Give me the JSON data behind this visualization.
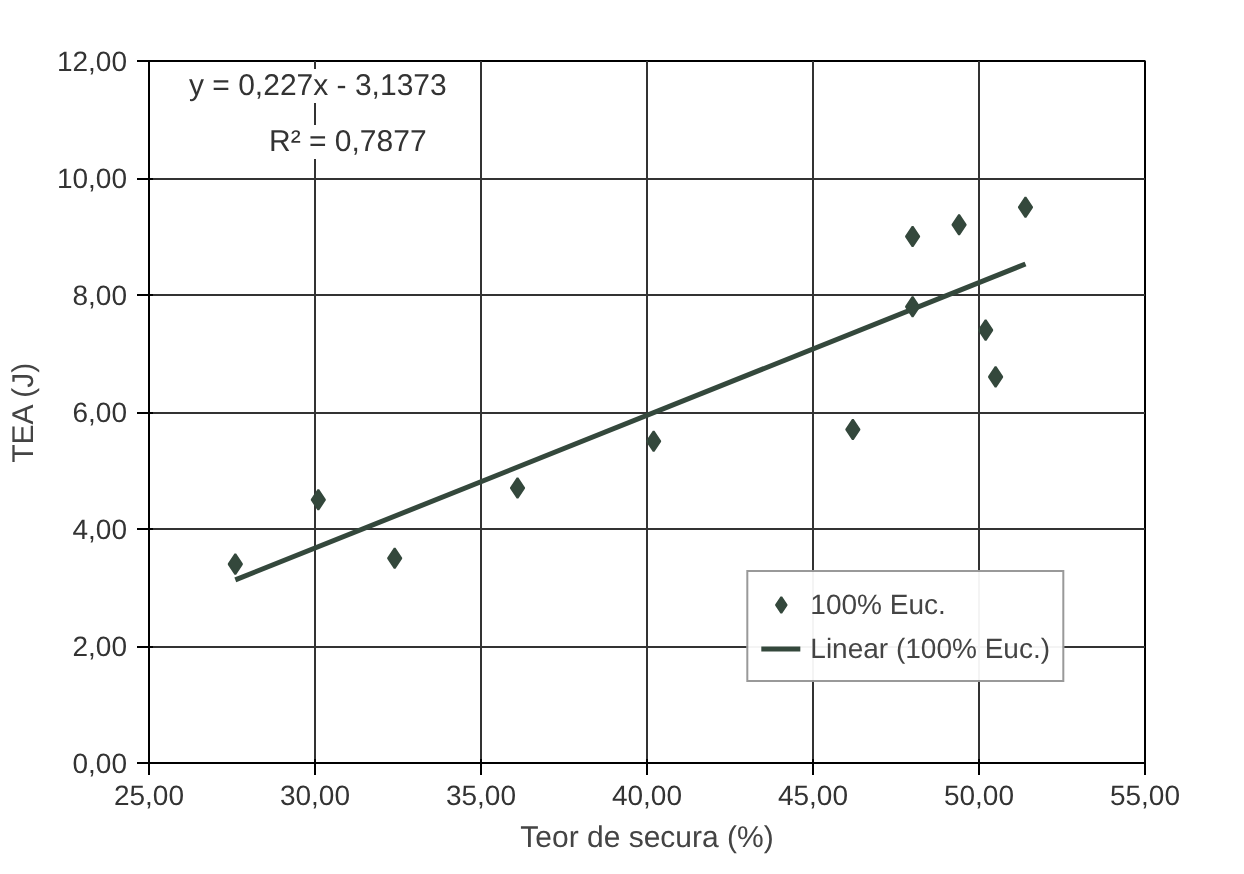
{
  "chart_data": {
    "type": "scatter",
    "xlabel": "Teor de secura (%)",
    "ylabel": "TEA (J)",
    "annotations": [
      "y = 0,227x - 3,1373",
      "R² = 0,7877"
    ],
    "series": [
      {
        "name": "100% Euc.",
        "color": "#34483c",
        "marker": "diamond",
        "x": [
          27.6,
          30.1,
          32.4,
          36.1,
          40.2,
          46.2,
          48.0,
          48.0,
          49.4,
          50.2,
          50.5,
          51.4
        ],
        "values": [
          3.4,
          4.5,
          3.5,
          4.7,
          5.5,
          5.7,
          9.0,
          7.8,
          9.2,
          7.4,
          6.6,
          9.5
        ]
      },
      {
        "name": "Linear (100% Euc.)",
        "type": "line",
        "color": "#34483c",
        "line_style": "solid",
        "x": [
          27.6,
          51.4
        ],
        "values": [
          3.13,
          8.53
        ]
      }
    ],
    "xlim": [
      25,
      55
    ],
    "ylim": [
      0,
      12
    ],
    "xticks": [
      {
        "value": 25,
        "label": "25,00"
      },
      {
        "value": 30,
        "label": "30,00"
      },
      {
        "value": 35,
        "label": "35,00"
      },
      {
        "value": 40,
        "label": "40,00"
      },
      {
        "value": 45,
        "label": "45,00"
      },
      {
        "value": 50,
        "label": "50,00"
      },
      {
        "value": 55,
        "label": "55,00"
      }
    ],
    "yticks": [
      {
        "value": 0,
        "label": "0,00"
      },
      {
        "value": 2,
        "label": "2,00"
      },
      {
        "value": 4,
        "label": "4,00"
      },
      {
        "value": 6,
        "label": "6,00"
      },
      {
        "value": 8,
        "label": "8,00"
      },
      {
        "value": 10,
        "label": "10,00"
      },
      {
        "value": 12,
        "label": "12,00"
      }
    ],
    "grid": true,
    "legend": "bottom right"
  }
}
